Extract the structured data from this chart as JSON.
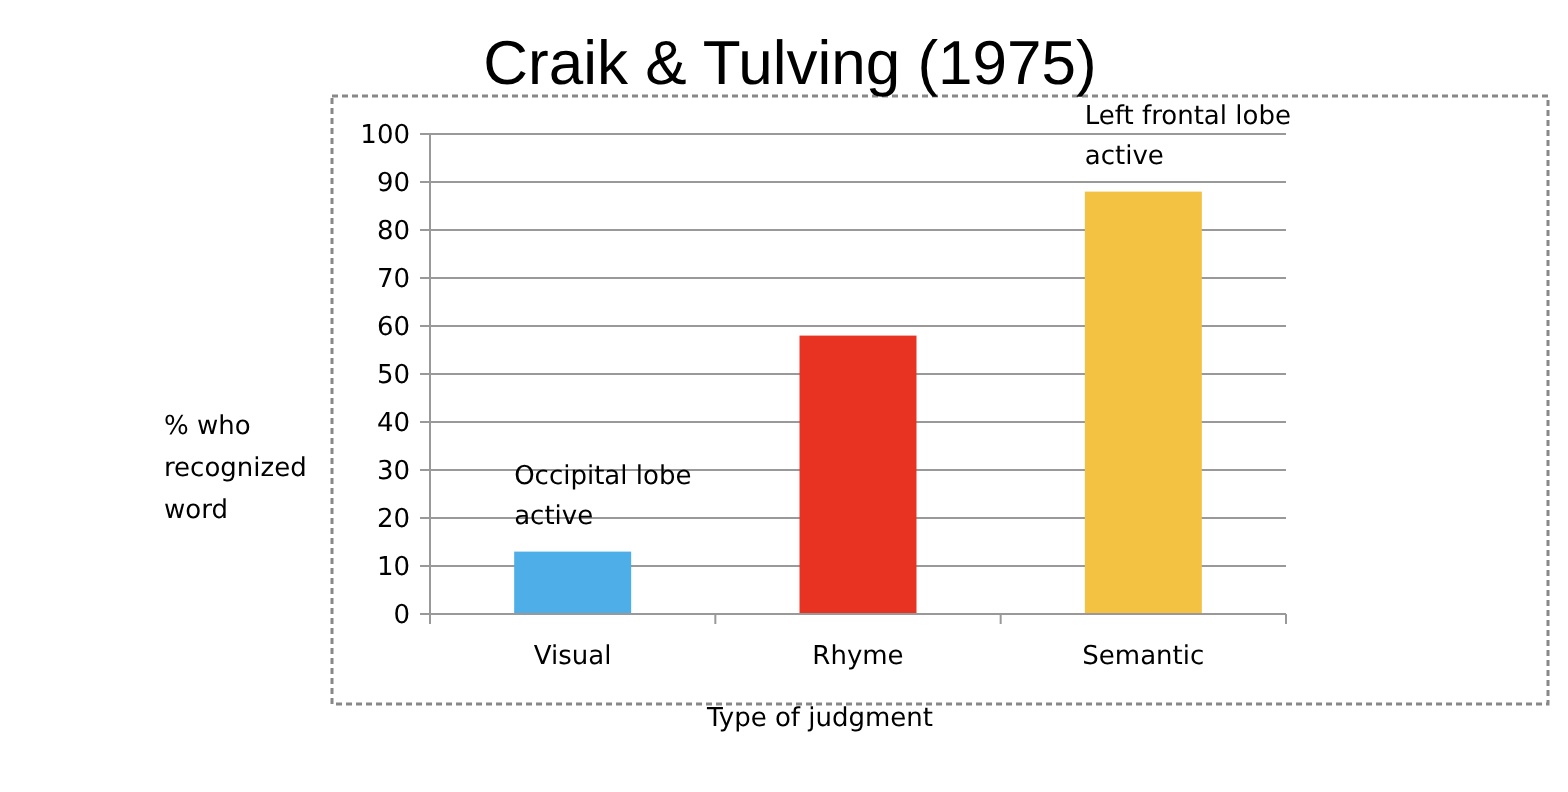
{
  "chart_data": {
    "type": "bar",
    "title": "Craik & Tulving (1975)",
    "xlabel": "Type of judgment",
    "ylabel": "% who recognized word",
    "categories": [
      "Visual",
      "Rhyme",
      "Semantic"
    ],
    "values": [
      13,
      58,
      88
    ],
    "colors": [
      "#4daee8",
      "#e83323",
      "#f3c242"
    ],
    "ylim": [
      0,
      100
    ],
    "yticks": [
      0,
      10,
      20,
      30,
      40,
      50,
      60,
      70,
      80,
      90,
      100
    ],
    "grid": "y",
    "annotations": [
      {
        "text": "Occipital lobe active",
        "x": "Visual",
        "y": 13
      },
      {
        "text": "Left frontal lobe active",
        "x": "Semantic",
        "y": 88
      }
    ]
  }
}
